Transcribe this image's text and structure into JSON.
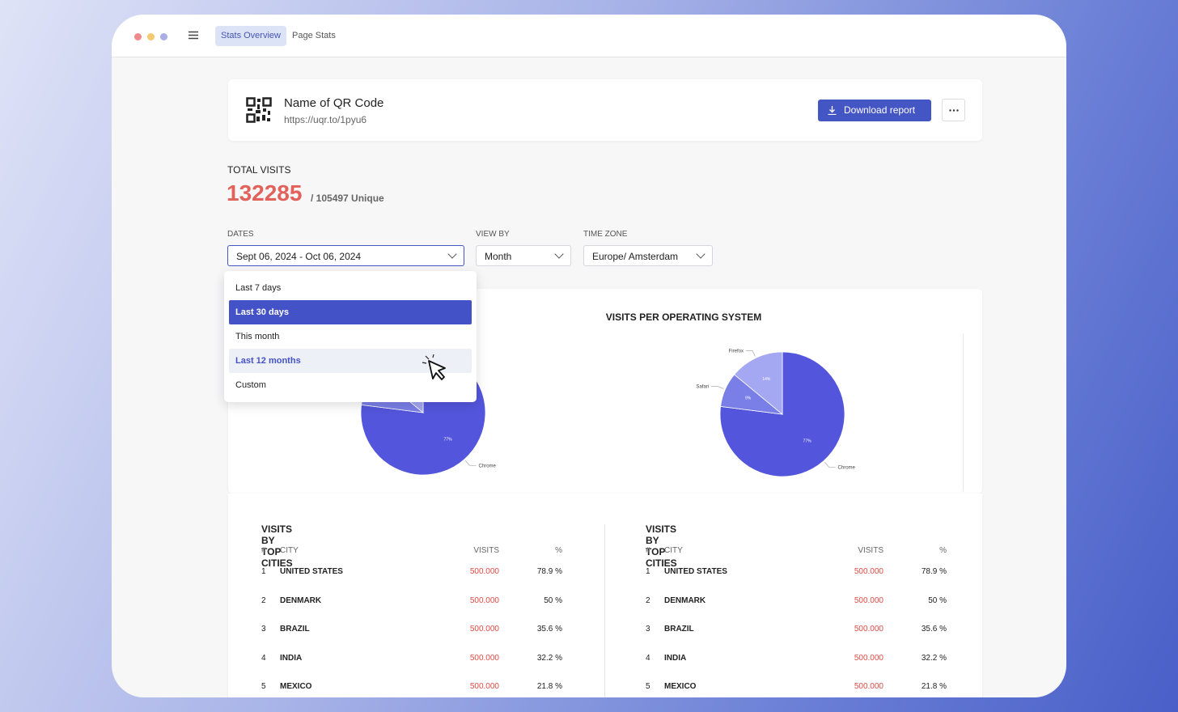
{
  "nav": {
    "tabs": [
      "Stats Overview",
      "Page Stats"
    ]
  },
  "header": {
    "title": "Name of QR Code",
    "url": "https://uqr.to/1pyu6",
    "download": "Download report"
  },
  "total": {
    "label": "TOTAL VISITS",
    "value": 132285,
    "unique": "/ 105497 Unique"
  },
  "filters": [
    {
      "label": "DATES",
      "value": "Sept 06, 2024 - Oct 06, 2024"
    },
    {
      "label": "VIEW BY",
      "value": "Month"
    },
    {
      "label": "TIME ZONE",
      "value": "Europe/ Amsterdam"
    }
  ],
  "dropdown": {
    "options": [
      "Last 7 days",
      "Last 30 days",
      "This month",
      "Last 12 months",
      "Custom"
    ]
  },
  "charts": [
    {
      "type": "pie",
      "labels": [
        "Chrome",
        null,
        null
      ],
      "values": [
        77,
        9,
        14
      ],
      "value_labels": [
        "77%",
        null,
        null
      ],
      "colors": [
        "#5356dc",
        "#7a7fe8",
        "#a4a7f1"
      ]
    },
    {
      "type": "pie",
      "title": "VISITS PER OPERATING SYSTEM",
      "labels": [
        "Chrome",
        "Safari",
        "Firefox"
      ],
      "values": [
        77,
        9,
        14
      ],
      "value_labels": [
        "77%",
        "9%",
        "14%"
      ],
      "colors": [
        "#5356dc",
        "#7a7fe8",
        "#a4a7f1"
      ]
    }
  ],
  "tables": [
    {
      "title": "VISITS BY TOP CITIES",
      "columns": [
        "#",
        "CITY",
        "VISITS",
        "%"
      ],
      "rows": [
        [
          "1",
          "UNITED STATES",
          "500.000",
          "78.9 %"
        ],
        [
          "2",
          "DENMARK",
          "500.000",
          "50 %"
        ],
        [
          "3",
          "BRAZIL",
          "500.000",
          "35.6 %"
        ],
        [
          "4",
          "INDIA",
          "500.000",
          "32.2 %"
        ],
        [
          "5",
          "MEXICO",
          "500.000",
          "21.8 %"
        ]
      ]
    },
    {
      "title": "VISITS BY TOP CITIES",
      "columns": [
        "#",
        "CITY",
        "VISITS",
        "%"
      ],
      "rows": [
        [
          "1",
          "UNITED STATES",
          "500.000",
          "78.9 %"
        ],
        [
          "2",
          "DENMARK",
          "500.000",
          "50 %"
        ],
        [
          "3",
          "BRAZIL",
          "500.000",
          "35.6 %"
        ],
        [
          "4",
          "INDIA",
          "500.000",
          "32.2 %"
        ],
        [
          "5",
          "MEXICO",
          "500.000",
          "21.8 %"
        ]
      ]
    }
  ]
}
